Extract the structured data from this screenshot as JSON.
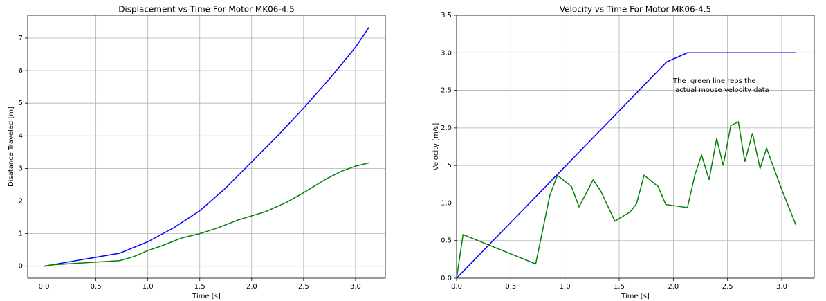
{
  "chart_data": [
    {
      "type": "line",
      "title": "Displacement vs Time For Motor MK06-4.5",
      "xlabel": "Time [s]",
      "ylabel": "Disatance Traveled [m]",
      "grid": true,
      "xlim": [
        -0.157,
        3.287
      ],
      "ylim": [
        -0.367,
        7.7
      ],
      "xticks": [
        {
          "value": 0,
          "label": "0.0"
        },
        {
          "value": 0.5,
          "label": "0.5"
        },
        {
          "value": 1,
          "label": "1.0"
        },
        {
          "value": 1.5,
          "label": "1.5"
        },
        {
          "value": 2,
          "label": "2.0"
        },
        {
          "value": 2.5,
          "label": "2.5"
        },
        {
          "value": 3,
          "label": "3.0"
        }
      ],
      "yticks": [
        0,
        1,
        2,
        3,
        4,
        5,
        6,
        7
      ],
      "series": [
        {
          "color": "#0000ff",
          "x": [
            0,
            0.73,
            1.0,
            1.25,
            1.5,
            1.75,
            2.0,
            2.25,
            2.5,
            2.75,
            3.0,
            3.13
          ],
          "values": [
            0,
            0.4,
            0.75,
            1.18,
            1.7,
            2.4,
            3.2,
            4.0,
            4.85,
            5.75,
            6.72,
            7.33
          ]
        },
        {
          "color": "#008000",
          "x": [
            0,
            0.07,
            0.73,
            0.87,
            1.0,
            1.13,
            1.33,
            1.5,
            1.67,
            1.87,
            2.13,
            2.33,
            2.47,
            2.6,
            2.73,
            2.87,
            3.0,
            3.13
          ],
          "values": [
            0,
            0.04,
            0.17,
            0.3,
            0.48,
            0.62,
            0.87,
            1.0,
            1.17,
            1.42,
            1.67,
            1.95,
            2.2,
            2.45,
            2.7,
            2.92,
            3.07,
            3.17
          ]
        }
      ]
    },
    {
      "type": "line",
      "title": "Velocity vs Time For Motor MK06-4.5",
      "xlabel": "Time [s]",
      "ylabel": "Velocity [m/s]",
      "grid": true,
      "xlim": [
        0,
        3.3
      ],
      "ylim": [
        0,
        3.5
      ],
      "xticks": [
        {
          "value": 0,
          "label": "0.0"
        },
        {
          "value": 0.5,
          "label": "0.5"
        },
        {
          "value": 1,
          "label": "1.0"
        },
        {
          "value": 1.5,
          "label": "1.5"
        },
        {
          "value": 2,
          "label": "2.0"
        },
        {
          "value": 2.5,
          "label": "2.5"
        },
        {
          "value": 3,
          "label": "3.0"
        }
      ],
      "yticks": [
        {
          "value": 0,
          "label": "0.0"
        },
        {
          "value": 0.5,
          "label": "0.5"
        },
        {
          "value": 1,
          "label": "1.0"
        },
        {
          "value": 1.5,
          "label": "1.5"
        },
        {
          "value": 2,
          "label": "2.0"
        },
        {
          "value": 2.5,
          "label": "2.5"
        },
        {
          "value": 3,
          "label": "3.0"
        },
        {
          "value": 3.5,
          "label": "3.5"
        }
      ],
      "annotation": [
        "The  green line reps the",
        " actual mouse velocity data"
      ],
      "series": [
        {
          "color": "#0000ff",
          "x": [
            0,
            1.94,
            2.13,
            3.13
          ],
          "values": [
            0,
            2.88,
            3.0,
            3.0
          ]
        },
        {
          "color": "#008000",
          "x": [
            0,
            0.06,
            0.73,
            0.86,
            0.93,
            1.06,
            1.13,
            1.26,
            1.33,
            1.46,
            1.6,
            1.66,
            1.73,
            1.86,
            1.93,
            2.13,
            2.2,
            2.26,
            2.33,
            2.4,
            2.46,
            2.53,
            2.6,
            2.66,
            2.73,
            2.8,
            2.86,
            3.0,
            3.13
          ],
          "values": [
            0,
            0.58,
            0.19,
            1.1,
            1.37,
            1.22,
            0.95,
            1.31,
            1.16,
            0.76,
            0.88,
            0.99,
            1.37,
            1.22,
            0.98,
            0.94,
            1.38,
            1.64,
            1.31,
            1.86,
            1.5,
            2.03,
            2.08,
            1.55,
            1.93,
            1.46,
            1.73,
            1.18,
            0.71
          ]
        }
      ]
    }
  ]
}
